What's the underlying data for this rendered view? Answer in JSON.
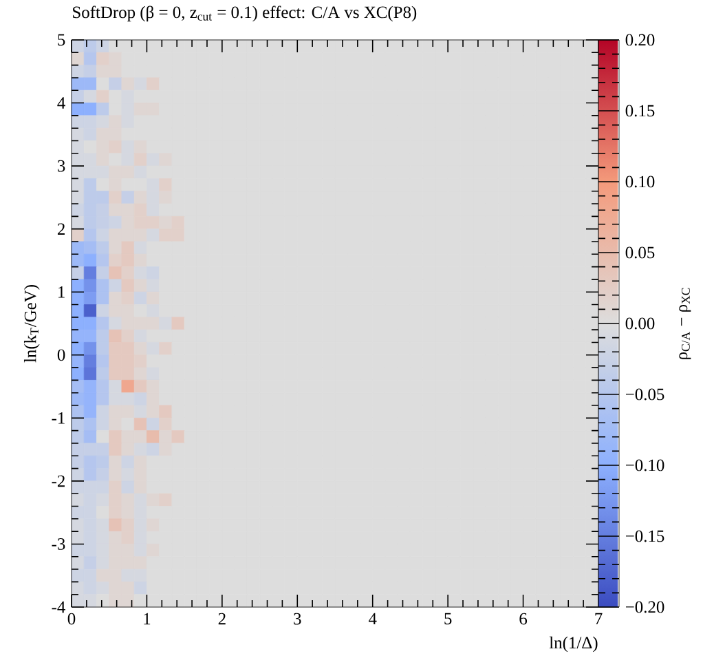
{
  "chart_data": {
    "type": "heatmap",
    "title": "SoftDrop (β = 0, z$_{cut}$ = 0.1) effect: C/A vs XC(P8)",
    "xlabel": "ln(1/Δ)",
    "ylabel": "ln(k$_{T}$/GeV)",
    "clabel": "ρ$_{C/A}$ − ρ$_{XC}$",
    "xlim": [
      0,
      7
    ],
    "ylim": [
      -4,
      5
    ],
    "xticks": [
      0,
      1,
      2,
      3,
      4,
      5,
      6,
      7
    ],
    "yticks": [
      -4,
      -3,
      -2,
      -1,
      0,
      1,
      2,
      3,
      4,
      5
    ],
    "clim": [
      -0.2,
      0.2
    ],
    "cticks": [
      {
        "value": -0.2,
        "label": "−0.20"
      },
      {
        "value": -0.15,
        "label": "−0.15"
      },
      {
        "value": -0.1,
        "label": "−0.10"
      },
      {
        "value": -0.05,
        "label": "−0.05"
      },
      {
        "value": 0,
        "label": "0.00"
      },
      {
        "value": 0.05,
        "label": "0.05"
      },
      {
        "value": 0.1,
        "label": "0.10"
      },
      {
        "value": 0.15,
        "label": "0.15"
      },
      {
        "value": 0.2,
        "label": "0.20"
      }
    ],
    "x": [
      0.083,
      0.25,
      0.417,
      0.583,
      0.75,
      0.917,
      1.083,
      1.25,
      1.417,
      1.583,
      1.75,
      1.917,
      2.083,
      2.25,
      2.417,
      2.583,
      2.75,
      2.917,
      3.083,
      3.25,
      3.417,
      3.583,
      3.75,
      3.917,
      4.083,
      4.25,
      4.417,
      4.583,
      4.75,
      4.917,
      5.083,
      5.25,
      5.417,
      5.583,
      5.75,
      5.917,
      6.083,
      6.25,
      6.417,
      6.583,
      6.75,
      6.917
    ],
    "y": [
      4.9,
      4.7,
      4.5,
      4.3,
      4.1,
      3.9,
      3.7,
      3.5,
      3.3,
      3.1,
      2.9,
      2.7,
      2.5,
      2.3,
      2.1,
      1.9,
      1.7,
      1.5,
      1.3,
      1.1,
      0.9,
      0.7,
      0.5,
      0.3,
      0.1,
      -0.1,
      -0.3,
      -0.5,
      -0.7,
      -0.9,
      -1.1,
      -1.3,
      -1.5,
      -1.7,
      -1.9,
      -2.1,
      -2.3,
      -2.5,
      -2.7,
      -2.9,
      -3.1,
      -3.3,
      -3.5,
      -3.7,
      -3.9
    ],
    "cells": [
      [
        -0.02,
        -0.04,
        -0.02,
        0,
        0,
        0,
        0,
        0,
        0,
        0,
        0,
        0,
        0,
        0,
        0,
        0,
        0,
        0,
        0,
        0,
        0,
        0,
        0,
        0,
        0,
        0,
        0,
        0,
        0,
        0,
        0,
        0,
        0,
        0,
        0,
        0,
        0,
        0,
        0,
        0,
        0,
        0
      ],
      [
        0.01,
        -0.05,
        0.02,
        0.01,
        0,
        0,
        0,
        0,
        0,
        0,
        0,
        0,
        0,
        0,
        0,
        0,
        0,
        0,
        0,
        0,
        0,
        0,
        0,
        0,
        0,
        0,
        0,
        0,
        0,
        0,
        0,
        0,
        0,
        0,
        0,
        0,
        0,
        0,
        0,
        0,
        0,
        0
      ],
      [
        -0.02,
        -0.03,
        0.01,
        0.01,
        0,
        0,
        0,
        0,
        0,
        0,
        0,
        0,
        0,
        0,
        0,
        0,
        0,
        0,
        0,
        0,
        0,
        0,
        0,
        0,
        0,
        0,
        0,
        0,
        0,
        0,
        0,
        0,
        0,
        0,
        0,
        0,
        0,
        0,
        0,
        0,
        0,
        0
      ],
      [
        -0.08,
        -0.08,
        0,
        -0.03,
        0.01,
        -0.01,
        0.02,
        0,
        0,
        0,
        0,
        0,
        0,
        0,
        0,
        0,
        0,
        0,
        0,
        0,
        0,
        0,
        0,
        0,
        0,
        0,
        0,
        0,
        0,
        0,
        0,
        0,
        0,
        0,
        0,
        0,
        0,
        0,
        0,
        0,
        0,
        0
      ],
      [
        -0.03,
        -0.01,
        0.02,
        0,
        -0.01,
        0,
        0,
        0,
        0,
        0,
        0,
        0,
        0,
        0,
        0,
        0,
        0,
        0,
        0,
        0,
        0,
        0,
        0,
        0,
        0,
        0,
        0,
        0,
        0,
        0,
        0,
        0,
        0,
        0,
        0,
        0,
        0,
        0,
        0,
        0,
        0,
        0
      ],
      [
        -0.1,
        -0.1,
        -0.04,
        0,
        -0.01,
        0.01,
        0.01,
        0,
        0,
        0,
        0,
        0,
        0,
        0,
        0,
        0,
        0,
        0,
        0,
        0,
        0,
        0,
        0,
        0,
        0,
        0,
        0,
        0,
        0,
        0,
        0,
        0,
        0,
        0,
        0,
        0,
        0,
        0,
        0,
        0,
        0,
        0
      ],
      [
        -0.02,
        -0.02,
        -0.01,
        0.01,
        -0.01,
        0,
        0,
        0,
        0,
        0,
        0,
        0,
        0,
        0,
        0,
        0,
        0,
        0,
        0,
        0,
        0,
        0,
        0,
        0,
        0,
        0,
        0,
        0,
        0,
        0,
        0,
        0,
        0,
        0,
        0,
        0,
        0,
        0,
        0,
        0,
        0,
        0
      ],
      [
        -0.01,
        -0.02,
        0.01,
        0.01,
        0,
        0,
        0,
        0,
        0,
        0,
        0,
        0,
        0,
        0,
        0,
        0,
        0,
        0,
        0,
        0,
        0,
        0,
        0,
        0,
        0,
        0,
        0,
        0,
        0,
        0,
        0,
        0,
        0,
        0,
        0,
        0,
        0,
        0,
        0,
        0,
        0,
        0
      ],
      [
        -0.01,
        0,
        0.01,
        0.02,
        -0.01,
        0.01,
        0,
        0,
        0,
        0,
        0,
        0,
        0,
        0,
        0,
        0,
        0,
        0,
        0,
        0,
        0,
        0,
        0,
        0,
        0,
        0,
        0,
        0,
        0,
        0,
        0,
        0,
        0,
        0,
        0,
        0,
        0,
        0,
        0,
        0,
        0,
        0
      ],
      [
        -0.01,
        -0.01,
        0.01,
        0,
        -0.01,
        0.02,
        -0.01,
        0.01,
        0,
        0,
        0,
        0,
        0,
        0,
        0,
        0,
        0,
        0,
        0,
        0,
        0,
        0,
        0,
        0,
        0,
        0,
        0,
        0,
        0,
        0,
        0,
        0,
        0,
        0,
        0,
        0,
        0,
        0,
        0,
        0,
        0,
        0
      ],
      [
        -0.01,
        -0.01,
        -0.01,
        0.01,
        0.01,
        -0.01,
        0,
        0,
        0,
        0,
        0,
        0,
        0,
        0,
        0,
        0,
        0,
        0,
        0,
        0,
        0,
        0,
        0,
        0,
        0,
        0,
        0,
        0,
        0,
        0,
        0,
        0,
        0,
        0,
        0,
        0,
        0,
        0,
        0,
        0,
        0,
        0
      ],
      [
        -0.01,
        -0.04,
        0,
        0.01,
        0,
        0,
        -0.01,
        0.02,
        0,
        0,
        0,
        0,
        0,
        0,
        0,
        0,
        0,
        0,
        0,
        0,
        0,
        0,
        0,
        0,
        0,
        0,
        0,
        0,
        0,
        0,
        0,
        0,
        0,
        0,
        0,
        0,
        0,
        0,
        0,
        0,
        0,
        0
      ],
      [
        -0.01,
        -0.04,
        -0.04,
        0.02,
        -0.03,
        0.01,
        -0.01,
        0.01,
        0,
        0,
        0,
        0,
        0,
        0,
        0,
        0,
        0,
        0,
        0,
        0,
        0,
        0,
        0,
        0,
        0,
        0,
        0,
        0,
        0,
        0,
        0,
        0,
        0,
        0,
        0,
        0,
        0,
        0,
        0,
        0,
        0,
        0
      ],
      [
        -0.02,
        -0.04,
        -0.03,
        0.01,
        0.01,
        0.02,
        -0.01,
        0,
        0,
        0,
        0,
        0,
        0,
        0,
        0,
        0,
        0,
        0,
        0,
        0,
        0,
        0,
        0,
        0,
        0,
        0,
        0,
        0,
        0,
        0,
        0,
        0,
        0,
        0,
        0,
        0,
        0,
        0,
        0,
        0,
        0,
        0
      ],
      [
        -0.01,
        -0.04,
        -0.03,
        -0.02,
        0.01,
        0.02,
        0.02,
        0.01,
        0.02,
        0,
        0,
        0,
        0,
        0,
        0,
        0,
        0,
        0,
        0,
        0,
        0,
        0,
        0,
        0,
        0,
        0,
        0,
        0,
        0,
        0,
        0,
        0,
        0,
        0,
        0,
        0,
        0,
        0,
        0,
        0,
        0,
        0
      ],
      [
        0.02,
        -0.05,
        -0.02,
        0.01,
        0.01,
        0.01,
        -0.01,
        0.02,
        0.02,
        0,
        0,
        0,
        0,
        0,
        0,
        0,
        0,
        0,
        0,
        0,
        0,
        0,
        0,
        0,
        0,
        0,
        0,
        0,
        0,
        0,
        0,
        0,
        0,
        0,
        0,
        0,
        0,
        0,
        0,
        0,
        0,
        0
      ],
      [
        -0.08,
        -0.07,
        -0.04,
        0.01,
        0.03,
        -0.01,
        0,
        0,
        0,
        0,
        0,
        0,
        0,
        0,
        0,
        0,
        0,
        0,
        0,
        0,
        0,
        0,
        0,
        0,
        0,
        0,
        0,
        0,
        0,
        0,
        0,
        0,
        0,
        0,
        0,
        0,
        0,
        0,
        0,
        0,
        0,
        0
      ],
      [
        -0.08,
        -0.1,
        -0.05,
        0.02,
        0.03,
        0.01,
        0,
        0,
        0,
        0,
        0,
        0,
        0,
        0,
        0,
        0,
        0,
        0,
        0,
        0,
        0,
        0,
        0,
        0,
        0,
        0,
        0,
        0,
        0,
        0,
        0,
        0,
        0,
        0,
        0,
        0,
        0,
        0,
        0,
        0,
        0,
        0
      ],
      [
        -0.03,
        -0.15,
        -0.03,
        0.04,
        0.02,
        -0.01,
        -0.02,
        0,
        0,
        0,
        0,
        0,
        0,
        0,
        0,
        0,
        0,
        0,
        0,
        0,
        0,
        0,
        0,
        0,
        0,
        0,
        0,
        0,
        0,
        0,
        0,
        0,
        0,
        0,
        0,
        0,
        0,
        0,
        0,
        0,
        0,
        0
      ],
      [
        -0.1,
        -0.13,
        -0.06,
        -0.02,
        0.03,
        0.01,
        -0.01,
        0,
        0,
        0,
        0,
        0,
        0,
        0,
        0,
        0,
        0,
        0,
        0,
        0,
        0,
        0,
        0,
        0,
        0,
        0,
        0,
        0,
        0,
        0,
        0,
        0,
        0,
        0,
        0,
        0,
        0,
        0,
        0,
        0,
        0,
        0
      ],
      [
        -0.1,
        -0.12,
        -0.06,
        0.01,
        0.02,
        -0.02,
        0.01,
        0,
        0,
        0,
        0,
        0,
        0,
        0,
        0,
        0,
        0,
        0,
        0,
        0,
        0,
        0,
        0,
        0,
        0,
        0,
        0,
        0,
        0,
        0,
        0,
        0,
        0,
        0,
        0,
        0,
        0,
        0,
        0,
        0,
        0,
        0
      ],
      [
        -0.1,
        -0.18,
        -0.02,
        0.01,
        0.01,
        0,
        -0.01,
        0,
        0,
        0,
        0,
        0,
        0,
        0,
        0,
        0,
        0,
        0,
        0,
        0,
        0,
        0,
        0,
        0,
        0,
        0,
        0,
        0,
        0,
        0,
        0,
        0,
        0,
        0,
        0,
        0,
        0,
        0,
        0,
        0,
        0,
        0
      ],
      [
        -0.1,
        -0.1,
        -0.05,
        -0.01,
        0.01,
        0.01,
        0.01,
        -0.01,
        0.03,
        0,
        0,
        0,
        0,
        0,
        0,
        0,
        0,
        0,
        0,
        0,
        0,
        0,
        0,
        0,
        0,
        0,
        0,
        0,
        0,
        0,
        0,
        0,
        0,
        0,
        0,
        0,
        0,
        0,
        0,
        0,
        0,
        0
      ],
      [
        -0.09,
        -0.09,
        -0.04,
        0.04,
        0.02,
        -0.01,
        0,
        0,
        0,
        0,
        0,
        0,
        0,
        0,
        0,
        0,
        0,
        0,
        0,
        0,
        0,
        0,
        0,
        0,
        0,
        0,
        0,
        0,
        0,
        0,
        0,
        0,
        0,
        0,
        0,
        0,
        0,
        0,
        0,
        0,
        0,
        0
      ],
      [
        -0.1,
        -0.13,
        -0.04,
        0.03,
        0.03,
        0.01,
        -0.01,
        0.02,
        0,
        0,
        0,
        0,
        0,
        0,
        0,
        0,
        0,
        0,
        0,
        0,
        0,
        0,
        0,
        0,
        0,
        0,
        0,
        0,
        0,
        0,
        0,
        0,
        0,
        0,
        0,
        0,
        0,
        0,
        0,
        0,
        0,
        0
      ],
      [
        -0.09,
        -0.15,
        -0.05,
        0.03,
        0.03,
        0.02,
        0,
        0,
        0,
        0,
        0,
        0,
        0,
        0,
        0,
        0,
        0,
        0,
        0,
        0,
        0,
        0,
        0,
        0,
        0,
        0,
        0,
        0,
        0,
        0,
        0,
        0,
        0,
        0,
        0,
        0,
        0,
        0,
        0,
        0,
        0,
        0
      ],
      [
        -0.1,
        -0.16,
        -0.04,
        0.03,
        0.03,
        0.01,
        -0.01,
        0,
        0,
        0,
        0,
        0,
        0,
        0,
        0,
        0,
        0,
        0,
        0,
        0,
        0,
        0,
        0,
        0,
        0,
        0,
        0,
        0,
        0,
        0,
        0,
        0,
        0,
        0,
        0,
        0,
        0,
        0,
        0,
        0,
        0,
        0
      ],
      [
        -0.07,
        -0.09,
        -0.05,
        -0.01,
        0.08,
        0.03,
        0.01,
        0,
        0,
        0,
        0,
        0,
        0,
        0,
        0,
        0,
        0,
        0,
        0,
        0,
        0,
        0,
        0,
        0,
        0,
        0,
        0,
        0,
        0,
        0,
        0,
        0,
        0,
        0,
        0,
        0,
        0,
        0,
        0,
        0,
        0,
        0
      ],
      [
        -0.08,
        -0.09,
        -0.05,
        -0.01,
        -0.01,
        -0.02,
        0.01,
        0,
        0,
        0,
        0,
        0,
        0,
        0,
        0,
        0,
        0,
        0,
        0,
        0,
        0,
        0,
        0,
        0,
        0,
        0,
        0,
        0,
        0,
        0,
        0,
        0,
        0,
        0,
        0,
        0,
        0,
        0,
        0,
        0,
        0,
        0
      ],
      [
        -0.06,
        -0.09,
        -0.02,
        0.01,
        0.01,
        -0.01,
        0.01,
        0.03,
        0,
        0,
        0,
        0,
        0,
        0,
        0,
        0,
        0,
        0,
        0,
        0,
        0,
        0,
        0,
        0,
        0,
        0,
        0,
        0,
        0,
        0,
        0,
        0,
        0,
        0,
        0,
        0,
        0,
        0,
        0,
        0,
        0,
        0
      ],
      [
        -0.04,
        -0.06,
        -0.02,
        0.01,
        0,
        0.04,
        -0.02,
        0.02,
        0,
        0,
        0,
        0,
        0,
        0,
        0,
        0,
        0,
        0,
        0,
        0,
        0,
        0,
        0,
        0,
        0,
        0,
        0,
        0,
        0,
        0,
        0,
        0,
        0,
        0,
        0,
        0,
        0,
        0,
        0,
        0,
        0,
        0
      ],
      [
        -0.04,
        -0.07,
        0,
        0.03,
        0.01,
        0.01,
        0.05,
        0.01,
        0.03,
        0,
        0,
        0,
        0,
        0,
        0,
        0,
        0,
        0,
        0,
        0,
        0,
        0,
        0,
        0,
        0,
        0,
        0,
        0,
        0,
        0,
        0,
        0,
        0,
        0,
        0,
        0,
        0,
        0,
        0,
        0,
        0,
        0
      ],
      [
        -0.03,
        -0.03,
        -0.03,
        0.03,
        0.01,
        -0.01,
        -0.02,
        0.01,
        0,
        0,
        0,
        0,
        0,
        0,
        0,
        0,
        0,
        0,
        0,
        0,
        0,
        0,
        0,
        0,
        0,
        0,
        0,
        0,
        0,
        0,
        0,
        0,
        0,
        0,
        0,
        0,
        0,
        0,
        0,
        0,
        0,
        0
      ],
      [
        -0.03,
        -0.05,
        -0.04,
        0.01,
        -0.02,
        0.01,
        0,
        0,
        0,
        0,
        0,
        0,
        0,
        0,
        0,
        0,
        0,
        0,
        0,
        0,
        0,
        0,
        0,
        0,
        0,
        0,
        0,
        0,
        0,
        0,
        0,
        0,
        0,
        0,
        0,
        0,
        0,
        0,
        0,
        0,
        0,
        0
      ],
      [
        -0.02,
        -0.05,
        -0.03,
        0.01,
        -0.01,
        0.01,
        0,
        0,
        0,
        0,
        0,
        0,
        0,
        0,
        0,
        0,
        0,
        0,
        0,
        0,
        0,
        0,
        0,
        0,
        0,
        0,
        0,
        0,
        0,
        0,
        0,
        0,
        0,
        0,
        0,
        0,
        0,
        0,
        0,
        0,
        0,
        0
      ],
      [
        -0.02,
        -0.02,
        -0.02,
        0.02,
        -0.02,
        0.01,
        0,
        0,
        0,
        0,
        0,
        0,
        0,
        0,
        0,
        0,
        0,
        0,
        0,
        0,
        0,
        0,
        0,
        0,
        0,
        0,
        0,
        0,
        0,
        0,
        0,
        0,
        0,
        0,
        0,
        0,
        0,
        0,
        0,
        0,
        0,
        0
      ],
      [
        -0.01,
        -0.02,
        -0.01,
        0.02,
        0.01,
        -0.01,
        0.01,
        0.02,
        0,
        0,
        0,
        0,
        0,
        0,
        0,
        0,
        0,
        0,
        0,
        0,
        0,
        0,
        0,
        0,
        0,
        0,
        0,
        0,
        0,
        0,
        0,
        0,
        0,
        0,
        0,
        0,
        0,
        0,
        0,
        0,
        0,
        0
      ],
      [
        -0.02,
        -0.02,
        0,
        0.02,
        0.01,
        -0.01,
        0,
        0,
        0,
        0,
        0,
        0,
        0,
        0,
        0,
        0,
        0,
        0,
        0,
        0,
        0,
        0,
        0,
        0,
        0,
        0,
        0,
        0,
        0,
        0,
        0,
        0,
        0,
        0,
        0,
        0,
        0,
        0,
        0,
        0,
        0,
        0
      ],
      [
        -0.01,
        -0.02,
        -0.01,
        0.04,
        0.02,
        -0.01,
        0.01,
        0,
        0,
        0,
        0,
        0,
        0,
        0,
        0,
        0,
        0,
        0,
        0,
        0,
        0,
        0,
        0,
        0,
        0,
        0,
        0,
        0,
        0,
        0,
        0,
        0,
        0,
        0,
        0,
        0,
        0,
        0,
        0,
        0,
        0,
        0
      ],
      [
        -0.01,
        -0.02,
        -0.01,
        0.01,
        0.02,
        -0.01,
        0,
        0,
        0,
        0,
        0,
        0,
        0,
        0,
        0,
        0,
        0,
        0,
        0,
        0,
        0,
        0,
        0,
        0,
        0,
        0,
        0,
        0,
        0,
        0,
        0,
        0,
        0,
        0,
        0,
        0,
        0,
        0,
        0,
        0,
        0,
        0
      ],
      [
        -0.02,
        -0.02,
        -0.01,
        0.01,
        0.01,
        -0.01,
        0.01,
        0,
        0,
        0,
        0,
        0,
        0,
        0,
        0,
        0,
        0,
        0,
        0,
        0,
        0,
        0,
        0,
        0,
        0,
        0,
        0,
        0,
        0,
        0,
        0,
        0,
        0,
        0,
        0,
        0,
        0,
        0,
        0,
        0,
        0,
        0
      ],
      [
        -0.01,
        -0.03,
        -0.01,
        0.01,
        0.01,
        0.01,
        0,
        0,
        0,
        0,
        0,
        0,
        0,
        0,
        0,
        0,
        0,
        0,
        0,
        0,
        0,
        0,
        0,
        0,
        0,
        0,
        0,
        0,
        0,
        0,
        0,
        0,
        0,
        0,
        0,
        0,
        0,
        0,
        0,
        0,
        0,
        0
      ],
      [
        -0.02,
        -0.02,
        0.01,
        0.01,
        -0.01,
        -0.01,
        0,
        0,
        0,
        0,
        0,
        0,
        0,
        0,
        0,
        0,
        0,
        0,
        0,
        0,
        0,
        0,
        0,
        0,
        0,
        0,
        0,
        0,
        0,
        0,
        0,
        0,
        0,
        0,
        0,
        0,
        0,
        0,
        0,
        0,
        0,
        0
      ],
      [
        -0.01,
        -0.02,
        -0.01,
        0.01,
        0.01,
        -0.02,
        0,
        0,
        0,
        0,
        0,
        0,
        0,
        0,
        0,
        0,
        0,
        0,
        0,
        0,
        0,
        0,
        0,
        0,
        0,
        0,
        0,
        0,
        0,
        0,
        0,
        0,
        0,
        0,
        0,
        0,
        0,
        0,
        0,
        0,
        0,
        0
      ],
      [
        -0.01,
        -0.01,
        0,
        0.01,
        0.01,
        0,
        0,
        0,
        0,
        0,
        0,
        0,
        0,
        0,
        0,
        0,
        0,
        0,
        0,
        0,
        0,
        0,
        0,
        0,
        0,
        0,
        0,
        0,
        0,
        0,
        0,
        0,
        0,
        0,
        0,
        0,
        0,
        0,
        0,
        0,
        0,
        0
      ]
    ]
  }
}
